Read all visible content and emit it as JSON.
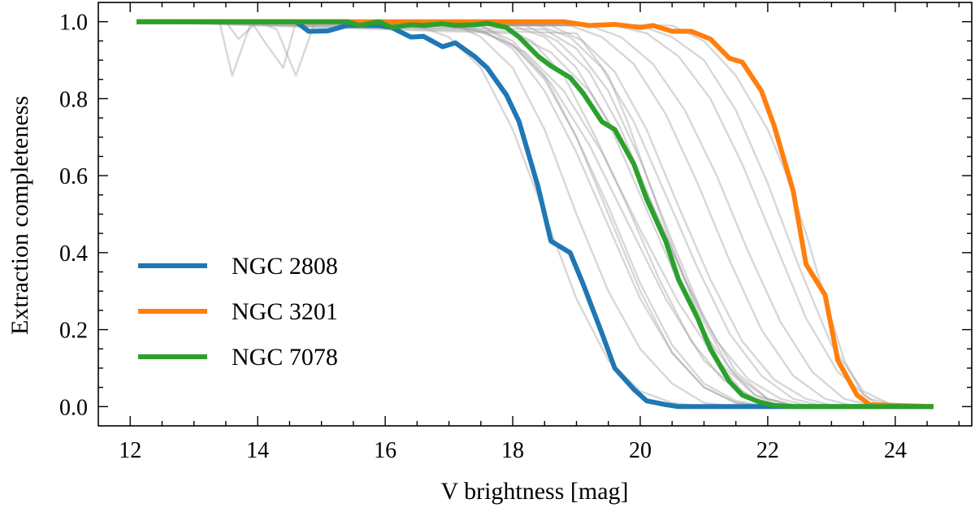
{
  "chart_data": {
    "type": "line",
    "title": "",
    "xlabel": "V brightness [mag]",
    "ylabel": "Extraction completeness",
    "xlim": [
      11.5,
      25.2
    ],
    "ylim": [
      -0.05,
      1.05
    ],
    "xticks": [
      12,
      14,
      16,
      18,
      20,
      22,
      24
    ],
    "yticks": [
      0.0,
      0.2,
      0.4,
      0.6,
      0.8,
      1.0
    ],
    "xtick_labels": [
      "12",
      "14",
      "16",
      "18",
      "20",
      "22",
      "24"
    ],
    "ytick_labels": [
      "0.0",
      "0.2",
      "0.4",
      "0.6",
      "0.8",
      "1.0"
    ],
    "grid": false,
    "legend_position": "lower-left",
    "series": [
      {
        "name": "NGC 2808",
        "color": "#1f77b4",
        "x": [
          12.1,
          14.6,
          14.8,
          15.1,
          15.4,
          15.6,
          15.9,
          16.1,
          16.4,
          16.6,
          16.9,
          17.1,
          17.4,
          17.6,
          17.9,
          18.1,
          18.4,
          18.6,
          18.9,
          19.1,
          19.4,
          19.6,
          19.9,
          20.1,
          20.4,
          20.6,
          24.6
        ],
        "y": [
          1.0,
          1.0,
          0.975,
          0.976,
          0.99,
          0.99,
          0.99,
          0.985,
          0.96,
          0.962,
          0.935,
          0.945,
          0.91,
          0.88,
          0.81,
          0.74,
          0.57,
          0.43,
          0.4,
          0.32,
          0.19,
          0.1,
          0.045,
          0.015,
          0.005,
          0.0,
          0.0
        ]
      },
      {
        "name": "NGC 3201",
        "color": "#ff7f0e",
        "x": [
          12.1,
          16.0,
          18.8,
          19.2,
          19.6,
          20.0,
          20.2,
          20.5,
          20.8,
          21.1,
          21.4,
          21.6,
          21.9,
          22.1,
          22.4,
          22.6,
          22.9,
          23.1,
          23.4,
          23.6,
          24.6
        ],
        "y": [
          1.0,
          1.0,
          1.0,
          0.99,
          0.993,
          0.985,
          0.99,
          0.975,
          0.975,
          0.955,
          0.905,
          0.895,
          0.82,
          0.73,
          0.56,
          0.37,
          0.29,
          0.12,
          0.03,
          0.005,
          0.0
        ]
      },
      {
        "name": "NGC 7078",
        "color": "#2ca02c",
        "x": [
          12.1,
          15.4,
          15.6,
          15.9,
          16.1,
          16.4,
          16.6,
          16.9,
          17.1,
          17.4,
          17.6,
          17.9,
          18.1,
          18.4,
          18.6,
          18.9,
          19.1,
          19.4,
          19.6,
          19.9,
          20.1,
          20.4,
          20.6,
          20.9,
          21.1,
          21.4,
          21.6,
          21.9,
          22.1,
          22.4,
          22.6,
          24.6
        ],
        "y": [
          1.0,
          1.0,
          0.99,
          1.0,
          0.985,
          0.992,
          0.99,
          0.995,
          0.99,
          0.992,
          0.996,
          0.985,
          0.96,
          0.91,
          0.885,
          0.855,
          0.815,
          0.74,
          0.72,
          0.63,
          0.54,
          0.43,
          0.33,
          0.23,
          0.15,
          0.065,
          0.03,
          0.01,
          0.003,
          0.0,
          0.0,
          0.0
        ]
      }
    ],
    "background_series": [
      {
        "x": [
          12.1,
          13.4,
          13.6,
          13.9,
          14.1,
          14.4,
          14.6,
          14.9,
          15.1,
          16.0,
          17.5,
          18.0,
          18.5,
          19.0,
          19.5,
          20.0,
          20.5,
          21.0,
          21.5,
          22.0,
          24.6
        ],
        "y": [
          1.0,
          1.0,
          0.86,
          1.0,
          0.95,
          0.88,
          1.0,
          1.0,
          1.0,
          1.0,
          0.99,
          0.94,
          0.85,
          0.7,
          0.52,
          0.32,
          0.16,
          0.06,
          0.015,
          0.0,
          0.0
        ]
      },
      {
        "x": [
          12.1,
          13.5,
          13.7,
          14.0,
          14.3,
          14.6,
          14.9,
          16.0,
          17.5,
          18.0,
          18.5,
          19.0,
          19.5,
          20.0,
          20.5,
          21.0,
          21.5,
          22.0,
          24.6
        ],
        "y": [
          1.0,
          1.0,
          0.955,
          1.0,
          0.98,
          0.86,
          1.0,
          1.0,
          0.98,
          0.93,
          0.82,
          0.66,
          0.47,
          0.28,
          0.14,
          0.05,
          0.01,
          0.0,
          0.0
        ]
      },
      {
        "x": [
          12.1,
          17.0,
          17.5,
          18.0,
          18.5,
          19.0,
          19.5,
          20.0,
          20.5,
          21.0,
          21.5,
          24.6
        ],
        "y": [
          1.0,
          1.0,
          0.96,
          0.88,
          0.72,
          0.5,
          0.3,
          0.15,
          0.06,
          0.01,
          0.0,
          0.0
        ]
      },
      {
        "x": [
          12.1,
          17.5,
          18.0,
          18.5,
          19.0,
          19.5,
          20.0,
          20.5,
          21.0,
          21.5,
          22.0,
          24.6
        ],
        "y": [
          1.0,
          0.99,
          0.95,
          0.86,
          0.7,
          0.5,
          0.3,
          0.14,
          0.05,
          0.01,
          0.0,
          0.0
        ]
      },
      {
        "x": [
          12.1,
          17.8,
          18.3,
          18.8,
          19.3,
          19.8,
          20.3,
          20.8,
          21.3,
          21.8,
          22.3,
          24.6
        ],
        "y": [
          1.0,
          0.99,
          0.95,
          0.86,
          0.7,
          0.52,
          0.33,
          0.17,
          0.07,
          0.02,
          0.0,
          0.0
        ]
      },
      {
        "x": [
          12.1,
          18.0,
          18.5,
          19.0,
          19.5,
          20.0,
          20.5,
          21.0,
          21.5,
          22.0,
          22.5,
          24.6
        ],
        "y": [
          1.0,
          0.99,
          0.96,
          0.88,
          0.74,
          0.55,
          0.36,
          0.19,
          0.08,
          0.02,
          0.0,
          0.0
        ]
      },
      {
        "x": [
          12.1,
          18.2,
          18.7,
          19.2,
          19.7,
          20.2,
          20.7,
          21.2,
          21.7,
          22.2,
          22.7,
          24.6
        ],
        "y": [
          1.0,
          0.99,
          0.95,
          0.87,
          0.72,
          0.52,
          0.33,
          0.17,
          0.07,
          0.02,
          0.0,
          0.0
        ]
      },
      {
        "x": [
          12.1,
          18.4,
          18.9,
          19.4,
          19.9,
          20.4,
          20.9,
          21.4,
          21.9,
          22.4,
          22.9,
          24.6
        ],
        "y": [
          1.0,
          0.99,
          0.96,
          0.88,
          0.74,
          0.55,
          0.36,
          0.19,
          0.08,
          0.02,
          0.0,
          0.0
        ]
      },
      {
        "x": [
          12.1,
          18.6,
          19.1,
          19.6,
          20.1,
          20.6,
          21.1,
          21.6,
          22.1,
          22.6,
          23.1,
          24.6
        ],
        "y": [
          1.0,
          0.99,
          0.95,
          0.87,
          0.72,
          0.52,
          0.33,
          0.17,
          0.07,
          0.02,
          0.0,
          0.0
        ]
      },
      {
        "x": [
          12.1,
          18.9,
          19.4,
          19.9,
          20.4,
          20.9,
          21.4,
          21.9,
          22.4,
          22.9,
          23.4,
          24.6
        ],
        "y": [
          1.0,
          0.99,
          0.96,
          0.89,
          0.76,
          0.58,
          0.38,
          0.2,
          0.08,
          0.02,
          0.0,
          0.0
        ]
      },
      {
        "x": [
          12.1,
          19.2,
          19.7,
          20.2,
          20.7,
          21.2,
          21.7,
          22.2,
          22.7,
          23.2,
          23.7,
          24.6
        ],
        "y": [
          1.0,
          0.99,
          0.96,
          0.89,
          0.77,
          0.6,
          0.4,
          0.22,
          0.09,
          0.02,
          0.0,
          0.0
        ]
      },
      {
        "x": [
          12.1,
          19.6,
          20.1,
          20.6,
          21.1,
          21.6,
          22.1,
          22.6,
          23.1,
          23.6,
          24.1,
          24.6
        ],
        "y": [
          1.0,
          0.99,
          0.97,
          0.91,
          0.8,
          0.63,
          0.43,
          0.23,
          0.09,
          0.02,
          0.0,
          0.0
        ]
      },
      {
        "x": [
          12.1,
          20.0,
          20.5,
          21.0,
          21.5,
          22.0,
          22.5,
          23.0,
          23.5,
          24.0,
          24.6
        ],
        "y": [
          1.0,
          0.99,
          0.96,
          0.9,
          0.77,
          0.58,
          0.36,
          0.16,
          0.04,
          0.0,
          0.0
        ]
      },
      {
        "x": [
          12.1,
          20.5,
          21.0,
          21.5,
          22.0,
          22.3,
          22.6,
          22.9,
          23.2,
          23.5,
          23.8,
          24.6
        ],
        "y": [
          1.0,
          0.99,
          0.95,
          0.86,
          0.72,
          0.6,
          0.45,
          0.28,
          0.12,
          0.03,
          0.0,
          0.0
        ]
      },
      {
        "x": [
          12.1,
          17.0,
          17.6,
          18.2,
          18.8,
          19.4,
          20.0,
          20.6,
          21.2,
          21.8,
          22.4,
          24.6
        ],
        "y": [
          1.0,
          0.99,
          0.97,
          0.92,
          0.82,
          0.66,
          0.46,
          0.27,
          0.12,
          0.03,
          0.0,
          0.0
        ]
      },
      {
        "x": [
          12.1,
          17.4,
          18.0,
          18.6,
          19.2,
          19.8,
          20.4,
          21.0,
          21.6,
          22.2,
          24.6
        ],
        "y": [
          1.0,
          0.98,
          0.94,
          0.84,
          0.68,
          0.48,
          0.28,
          0.12,
          0.03,
          0.0,
          0.0
        ]
      },
      {
        "x": [
          12.1,
          18.0,
          18.6,
          19.2,
          19.8,
          20.2,
          20.6,
          21.0,
          21.4,
          21.8,
          22.2,
          24.6
        ],
        "y": [
          1.0,
          0.97,
          0.92,
          0.82,
          0.66,
          0.52,
          0.37,
          0.22,
          0.1,
          0.03,
          0.0,
          0.0
        ]
      },
      {
        "x": [
          12.1,
          18.5,
          19.0,
          19.5,
          20.0,
          20.5,
          21.0,
          21.5,
          22.0,
          22.5,
          24.6
        ],
        "y": [
          1.0,
          0.98,
          0.93,
          0.82,
          0.64,
          0.43,
          0.23,
          0.09,
          0.02,
          0.0,
          0.0
        ]
      },
      {
        "x": [
          12.1,
          16.5,
          17.0,
          17.5,
          18.0,
          18.5,
          19.0,
          19.5,
          20.0,
          20.5,
          21.0,
          24.6
        ],
        "y": [
          1.0,
          0.99,
          0.96,
          0.88,
          0.72,
          0.5,
          0.28,
          0.12,
          0.04,
          0.01,
          0.0,
          0.0
        ]
      },
      {
        "x": [
          12.1,
          19.0,
          19.5,
          19.8,
          20.1,
          20.4,
          20.7,
          21.0,
          21.3,
          21.6,
          22.0,
          24.6
        ],
        "y": [
          1.0,
          0.97,
          0.86,
          0.74,
          0.6,
          0.46,
          0.33,
          0.2,
          0.1,
          0.04,
          0.0,
          0.0
        ]
      }
    ]
  }
}
